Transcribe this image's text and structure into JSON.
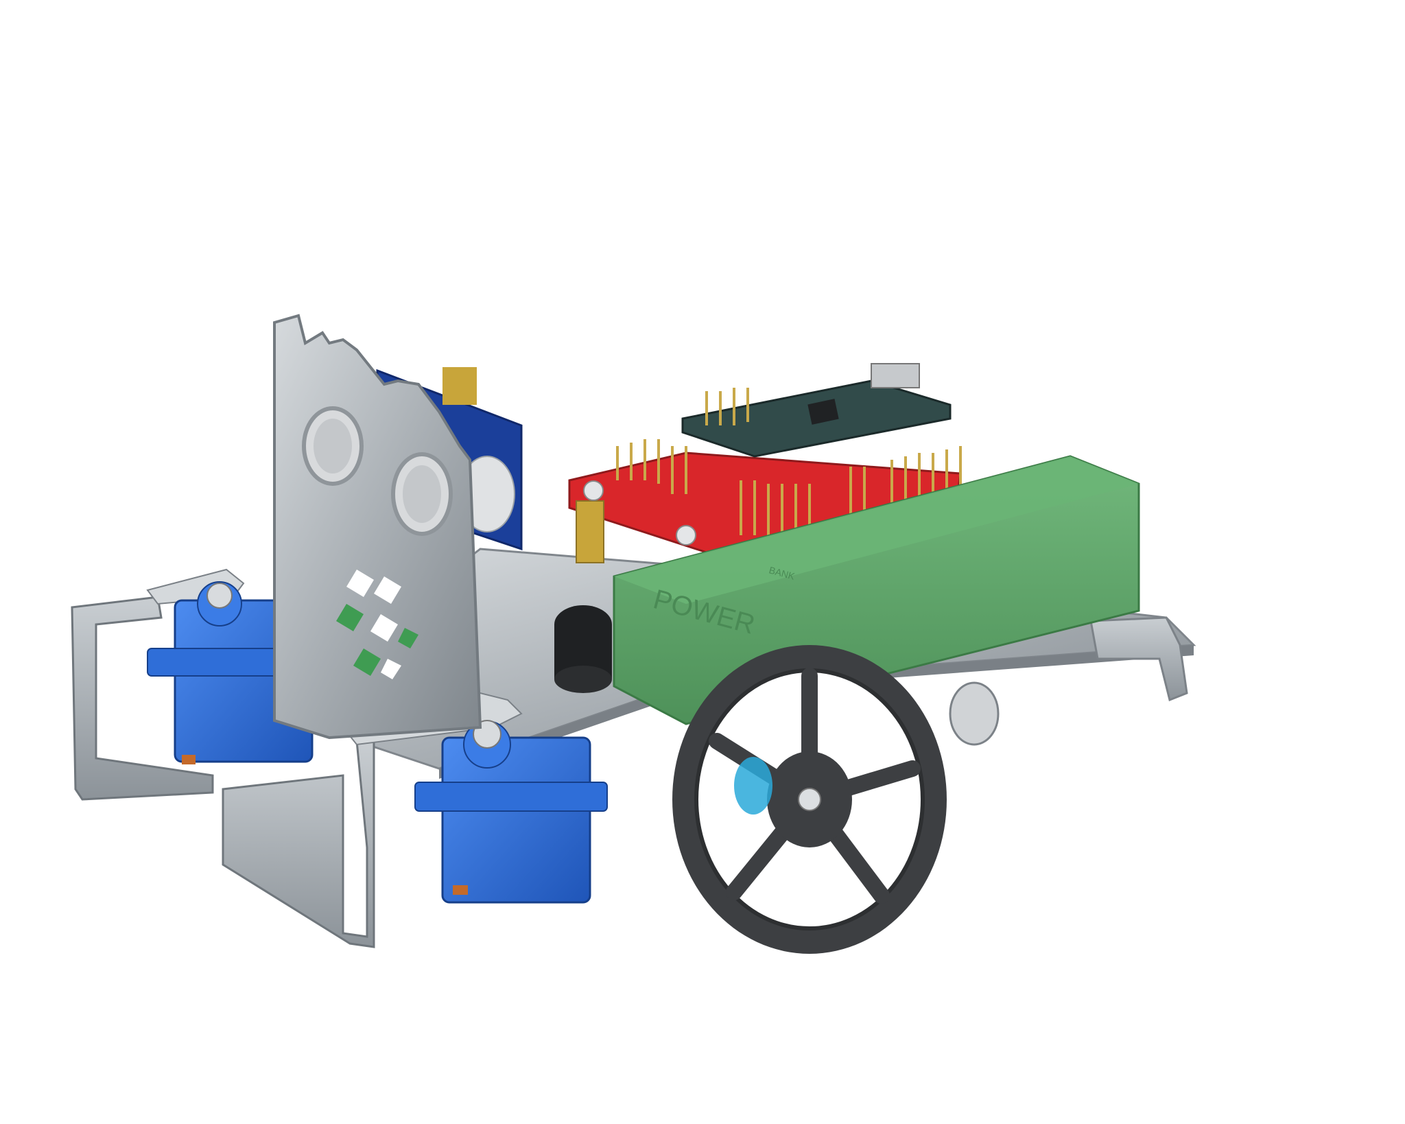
{
  "scene": {
    "subject": "robot-render",
    "power_bank_text": "POWER",
    "power_bank_subtext": "BANK",
    "colors": {
      "background": "#ffffff",
      "chassis": "#b9bec3",
      "chassis_edge": "#8a9096",
      "servo": "#2f6ed8",
      "power_bank": "#5fa56a",
      "pcb_red": "#d9262a",
      "pcb_blue": "#1b3f9a",
      "wheel": "#3d3f42",
      "hub_cyan": "#2aa9d9",
      "logo_green": "#3f9c52"
    }
  }
}
